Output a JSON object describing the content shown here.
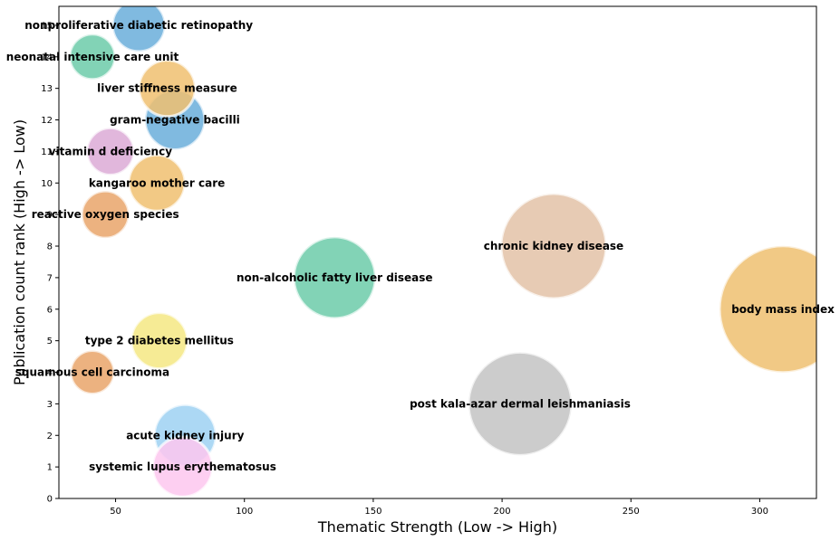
{
  "chart_data": {
    "type": "scatter",
    "xlabel": "Thematic Strength (Low -> High)",
    "ylabel": "Publication count rank (High -> Low)",
    "xlim": [
      28,
      322
    ],
    "ylim": [
      0,
      15.6
    ],
    "xticks": [
      50,
      100,
      150,
      200,
      250,
      300
    ],
    "yticks": [
      0,
      1,
      2,
      3,
      4,
      5,
      6,
      7,
      8,
      9,
      10,
      11,
      12,
      13,
      14,
      15
    ],
    "grid": false,
    "points": [
      {
        "label": "nonproliferative diabetic retinopathy",
        "x": 59,
        "y": 15,
        "size": 29,
        "color": "#6aaedb"
      },
      {
        "label": "neonatal intensive care unit",
        "x": 41,
        "y": 14,
        "size": 25,
        "color": "#6ccba9"
      },
      {
        "label": "liver stiffness measure",
        "x": 70,
        "y": 13,
        "size": 31,
        "color": "#f0c070"
      },
      {
        "label": "gram-negative bacilli",
        "x": 73,
        "y": 12,
        "size": 33,
        "color": "#6aaedb"
      },
      {
        "label": "vitamin d deficiency",
        "x": 48,
        "y": 11,
        "size": 26,
        "color": "#dcaad6"
      },
      {
        "label": "kangaroo mother care",
        "x": 66,
        "y": 10,
        "size": 31,
        "color": "#f0c070"
      },
      {
        "label": "reactive oxygen species",
        "x": 46,
        "y": 9,
        "size": 26,
        "color": "#e9a46a"
      },
      {
        "label": "chronic kidney disease",
        "x": 220,
        "y": 8,
        "size": 58,
        "color": "#e3c2a7"
      },
      {
        "label": "non-alcoholic fatty liver disease",
        "x": 135,
        "y": 7,
        "size": 45,
        "color": "#6ccba9"
      },
      {
        "label": "body mass index",
        "x": 309,
        "y": 6,
        "size": 70,
        "color": "#efc070"
      },
      {
        "label": "type 2 diabetes mellitus",
        "x": 67,
        "y": 5,
        "size": 31,
        "color": "#f5e883"
      },
      {
        "label": "squamous cell carcinoma",
        "x": 41,
        "y": 4,
        "size": 24,
        "color": "#e9a46a"
      },
      {
        "label": "post kala-azar dermal leishmaniasis",
        "x": 207,
        "y": 3,
        "size": 57,
        "color": "#c3c3c3"
      },
      {
        "label": "acute kidney injury",
        "x": 77,
        "y": 2,
        "size": 34,
        "color": "#9ed1f2"
      },
      {
        "label": "systemic lupus erythematosus",
        "x": 76,
        "y": 1,
        "size": 33,
        "color": "#fdc7ee"
      }
    ]
  }
}
